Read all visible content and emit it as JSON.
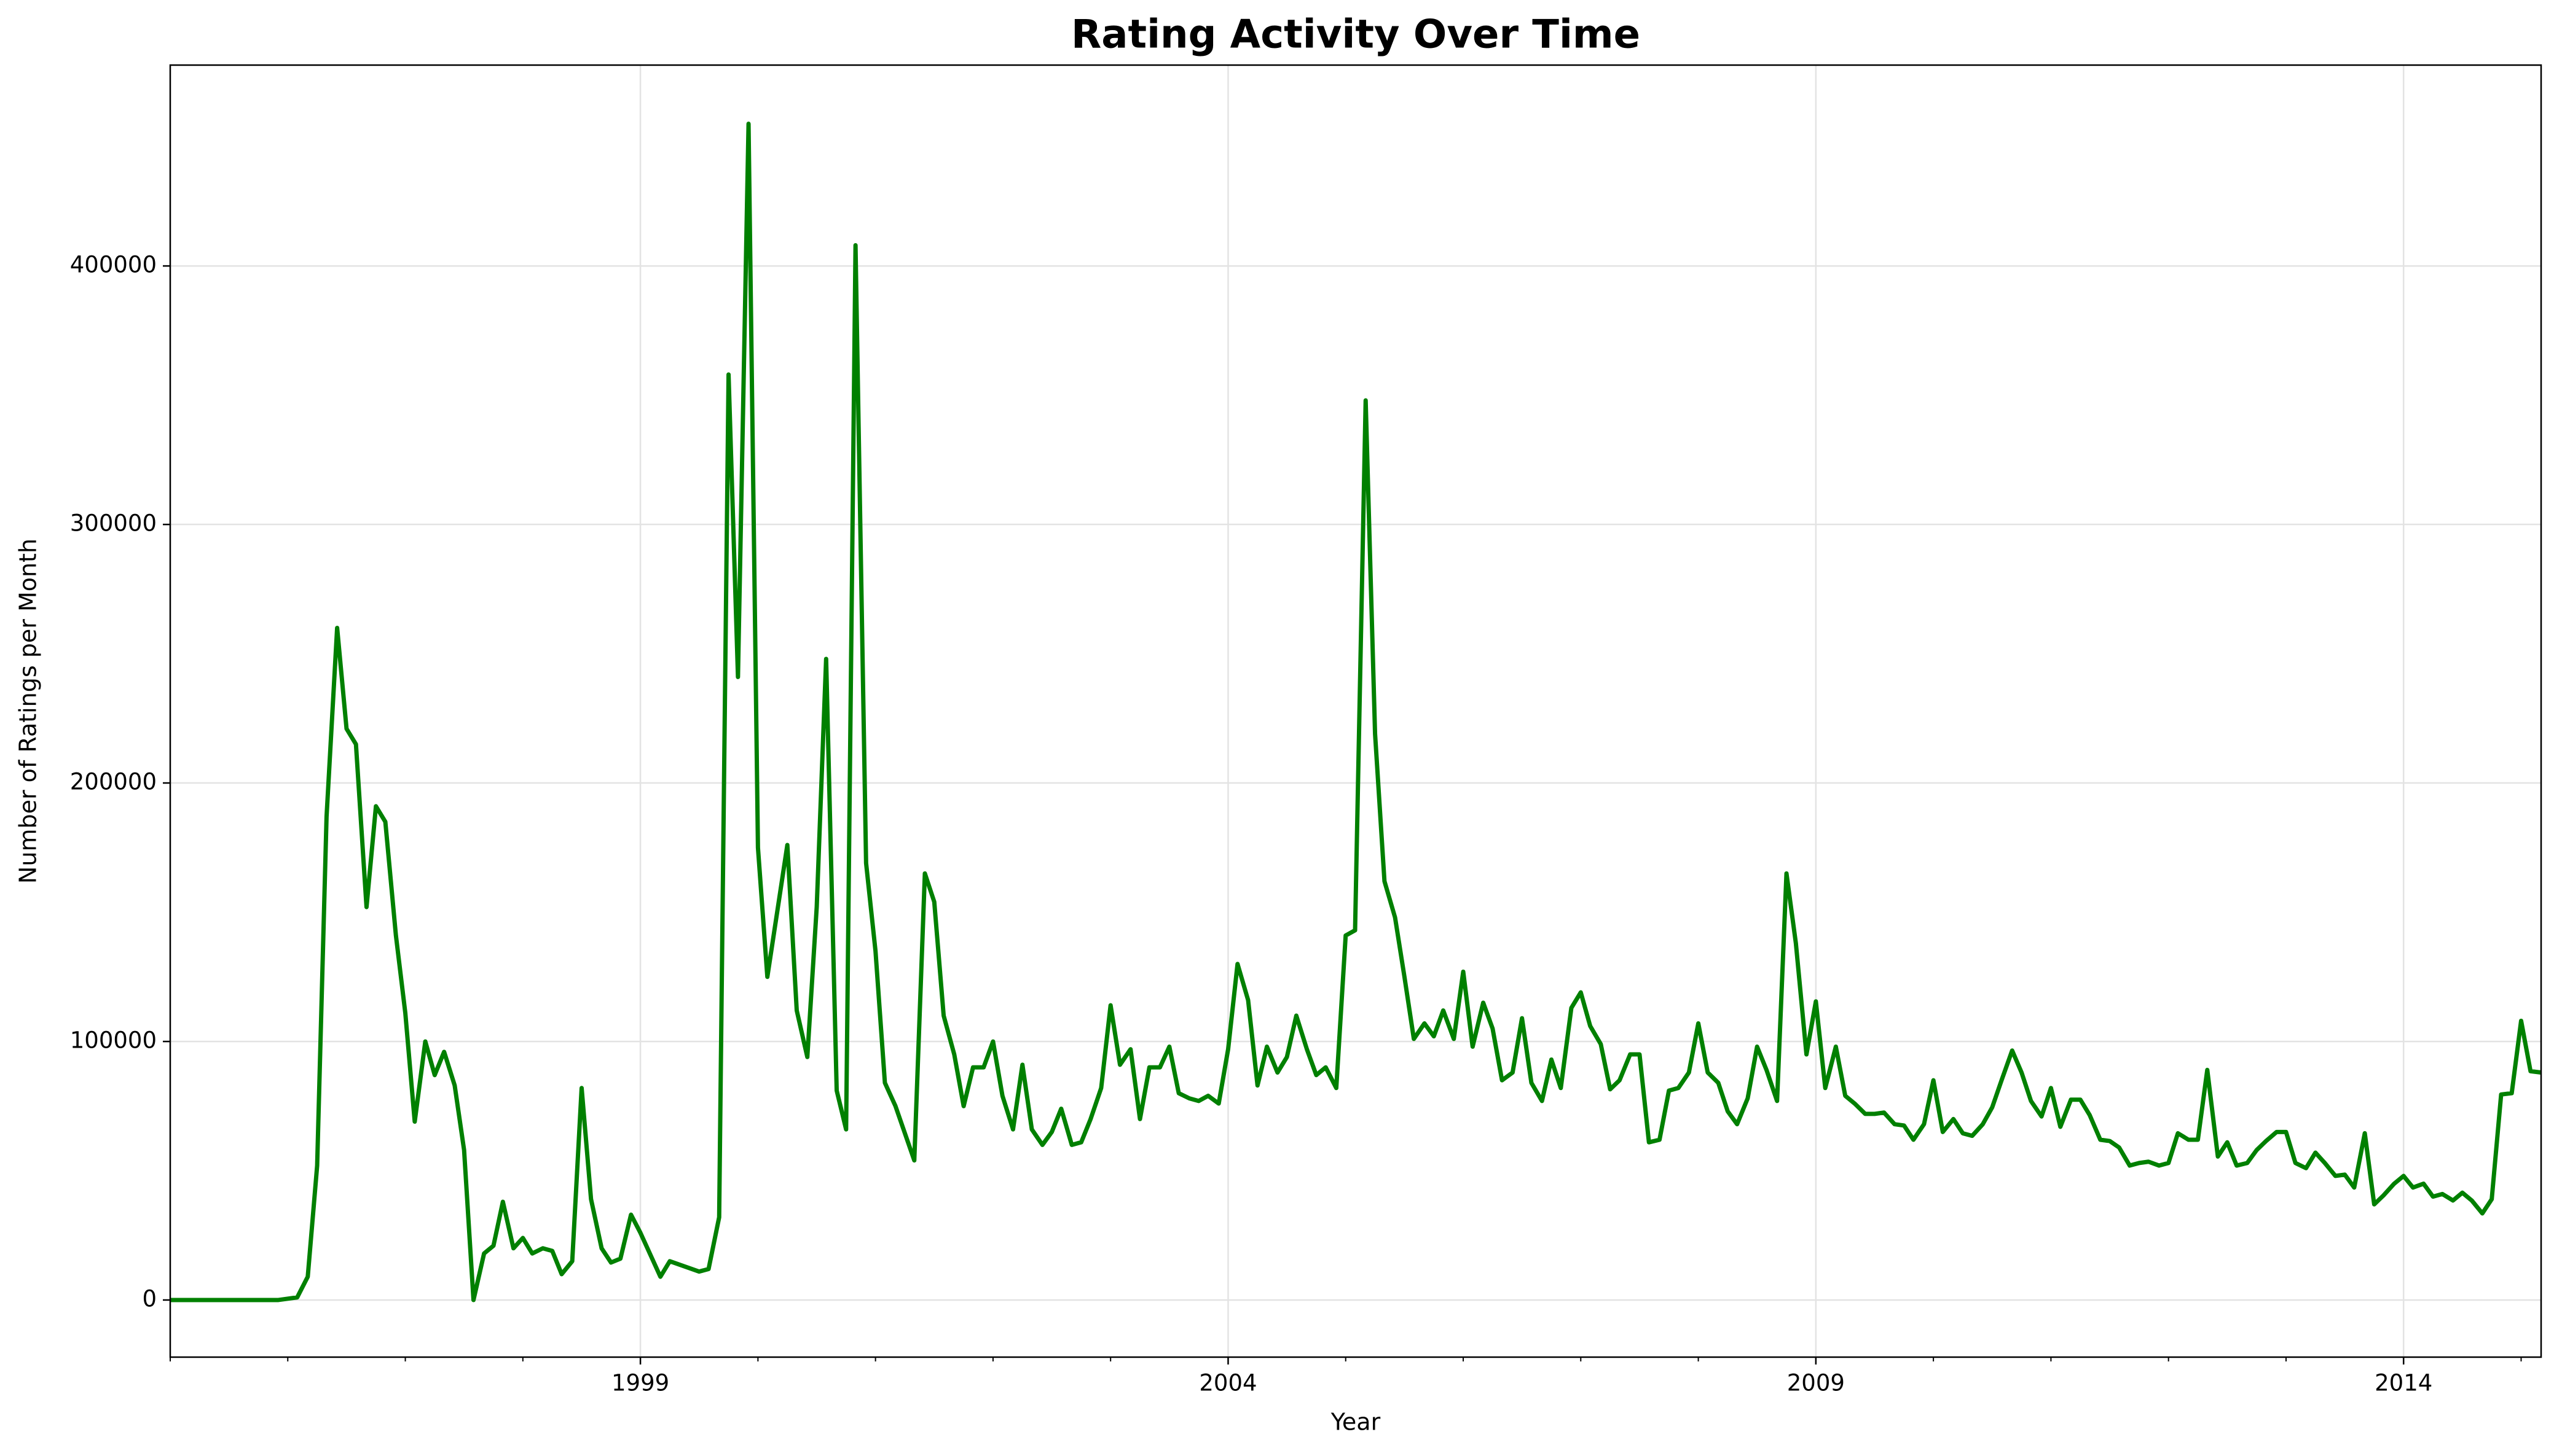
{
  "chart_data": {
    "type": "line",
    "title": "Rating Activity Over Time",
    "xlabel": "Year",
    "ylabel": "Number of Ratings per Month",
    "color": "#008000",
    "grid": true,
    "x": [
      1995.0,
      1995.92,
      1996.08,
      1996.17,
      1996.25,
      1996.33,
      1996.42,
      1996.5,
      1996.58,
      1996.67,
      1996.75,
      1996.83,
      1996.92,
      1997.0,
      1997.08,
      1997.17,
      1997.25,
      1997.33,
      1997.42,
      1997.5,
      1997.58,
      1997.67,
      1997.75,
      1997.83,
      1997.92,
      1998.0,
      1998.08,
      1998.17,
      1998.25,
      1998.33,
      1998.42,
      1998.5,
      1998.58,
      1998.67,
      1998.75,
      1998.83,
      1998.92,
      1999.0,
      1999.17,
      1999.25,
      1999.5,
      1999.58,
      1999.67,
      1999.75,
      1999.83,
      1999.92,
      2000.0,
      2000.08,
      2000.17,
      2000.25,
      2000.33,
      2000.42,
      2000.5,
      2000.58,
      2000.67,
      2000.75,
      2000.83,
      2000.92,
      2001.0,
      2001.08,
      2001.17,
      2001.33,
      2001.42,
      2001.5,
      2001.58,
      2001.67,
      2001.75,
      2001.83,
      2001.92,
      2002.0,
      2002.08,
      2002.17,
      2002.25,
      2002.33,
      2002.42,
      2002.5,
      2002.58,
      2002.67,
      2002.75,
      2002.83,
      2002.92,
      2003.0,
      2003.08,
      2003.17,
      2003.25,
      2003.33,
      2003.42,
      2003.5,
      2003.58,
      2003.67,
      2003.75,
      2003.83,
      2003.92,
      2004.0,
      2004.08,
      2004.17,
      2004.25,
      2004.33,
      2004.42,
      2004.5,
      2004.58,
      2004.67,
      2004.75,
      2004.83,
      2004.92,
      2005.0,
      2005.08,
      2005.17,
      2005.25,
      2005.33,
      2005.42,
      2005.5,
      2005.58,
      2005.67,
      2005.75,
      2005.83,
      2005.92,
      2006.0,
      2006.08,
      2006.17,
      2006.25,
      2006.33,
      2006.42,
      2006.5,
      2006.58,
      2006.67,
      2006.75,
      2006.83,
      2006.92,
      2007.0,
      2007.08,
      2007.17,
      2007.25,
      2007.33,
      2007.42,
      2007.5,
      2007.58,
      2007.67,
      2007.75,
      2007.83,
      2007.92,
      2008.0,
      2008.08,
      2008.17,
      2008.25,
      2008.33,
      2008.42,
      2008.5,
      2008.58,
      2008.67,
      2008.75,
      2008.83,
      2008.92,
      2009.0,
      2009.08,
      2009.17,
      2009.25,
      2009.33,
      2009.42,
      2009.5,
      2009.58,
      2009.67,
      2009.75,
      2009.83,
      2009.92,
      2010.0,
      2010.08,
      2010.17,
      2010.25,
      2010.33,
      2010.42,
      2010.5,
      2010.58,
      2010.67,
      2010.75,
      2010.83,
      2010.92,
      2011.0,
      2011.08,
      2011.17,
      2011.25,
      2011.33,
      2011.42,
      2011.5,
      2011.58,
      2011.67,
      2011.75,
      2011.83,
      2011.92,
      2012.0,
      2012.08,
      2012.17,
      2012.25,
      2012.33,
      2012.42,
      2012.5,
      2012.58,
      2012.67,
      2012.75,
      2012.83,
      2012.92,
      2013.0,
      2013.08,
      2013.17,
      2013.25,
      2013.33,
      2013.42,
      2013.5,
      2013.58,
      2013.67,
      2013.75,
      2013.83,
      2013.92,
      2014.0,
      2014.08,
      2014.17,
      2014.25,
      2014.33,
      2014.42,
      2014.5,
      2014.58,
      2014.67,
      2014.75,
      2014.83,
      2014.92,
      2015.0,
      2015.08,
      2015.17
    ],
    "values": [
      0,
      0,
      1000,
      9000,
      52000,
      187000,
      260000,
      221000,
      215000,
      152000,
      191000,
      185000,
      141000,
      111000,
      69000,
      100000,
      87000,
      96000,
      83000,
      58000,
      0,
      18000,
      21000,
      38000,
      20000,
      24000,
      18000,
      20000,
      19000,
      10000,
      15000,
      82000,
      39000,
      20000,
      14500,
      16000,
      33000,
      26000,
      9000,
      15000,
      11000,
      12000,
      32000,
      358000,
      241000,
      455000,
      175000,
      125000,
      152000,
      176000,
      112000,
      94000,
      152000,
      248000,
      81000,
      66000,
      408000,
      169000,
      135000,
      84000,
      75000,
      54000,
      165000,
      154000,
      110000,
      95000,
      75000,
      90000,
      90000,
      100000,
      79000,
      66000,
      91000,
      66000,
      60000,
      65000,
      74000,
      60000,
      61000,
      70000,
      82000,
      114000,
      91000,
      97000,
      70000,
      90000,
      90000,
      98000,
      80000,
      78000,
      77000,
      79000,
      76000,
      97000,
      130000,
      116000,
      83000,
      98000,
      88000,
      94000,
      110000,
      97000,
      87000,
      90000,
      82000,
      141000,
      143000,
      348000,
      219000,
      162000,
      148000,
      125000,
      101000,
      107000,
      102000,
      112000,
      101000,
      127000,
      98000,
      115000,
      105000,
      85000,
      88000,
      109000,
      84000,
      77000,
      93000,
      82000,
      113000,
      119000,
      106000,
      99000,
      81500,
      85000,
      95000,
      95000,
      61000,
      62000,
      81000,
      82000,
      88000,
      107000,
      88000,
      84000,
      73000,
      68000,
      78000,
      98000,
      89000,
      77000,
      165000,
      138000,
      95000,
      115500,
      82000,
      98000,
      79000,
      76000,
      72000,
      72000,
      72500,
      68000,
      67500,
      62000,
      68000,
      85000,
      65000,
      70000,
      64500,
      63500,
      68000,
      74500,
      85000,
      96500,
      88000,
      77000,
      71000,
      82000,
      67000,
      77500,
      77500,
      71500,
      62000,
      61500,
      59000,
      52000,
      53000,
      53500,
      52000,
      53000,
      64500,
      62000,
      62000,
      89000,
      55500,
      61000,
      52000,
      53000,
      58000,
      61500,
      65000,
      65000,
      53000,
      51000,
      57000,
      53000,
      48000,
      48500,
      43500,
      64500,
      37000,
      40500,
      45000,
      48000,
      43500,
      45000,
      40000,
      41000,
      38500,
      41500,
      38500,
      33500,
      39000,
      79500,
      80000,
      108000,
      88500,
      88000
    ],
    "xlim": [
      1995,
      2015.17
    ],
    "xticks": [
      1999,
      2004,
      2009,
      2014
    ],
    "xminorticks": [
      1995,
      1996,
      1997,
      1998,
      2000,
      2001,
      2002,
      2003,
      2005,
      2006,
      2007,
      2008,
      2010,
      2011,
      2012,
      2013,
      2015
    ],
    "ylim": [
      -22100,
      477700
    ],
    "yticks": [
      0,
      100000,
      200000,
      300000,
      400000
    ]
  }
}
